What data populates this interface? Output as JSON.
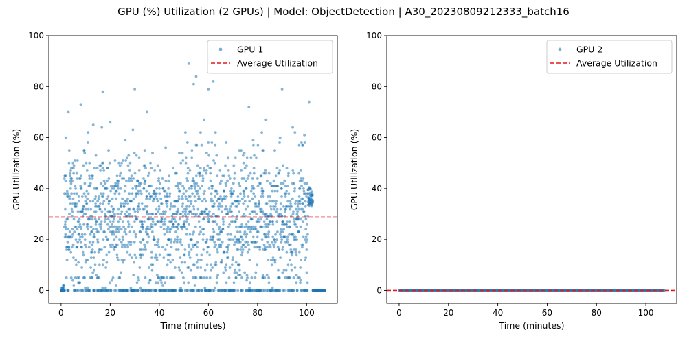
{
  "figure": {
    "suptitle": "GPU (%) Utilization (2 GPUs) | Model: ObjectDetection | A30_20230809212333_batch16"
  },
  "colors": {
    "points": "#1f77b4",
    "average": "#e31a1c"
  },
  "chart_data": [
    {
      "type": "scatter",
      "xlabel": "Time (minutes)",
      "ylabel": "GPU Utilization (%)",
      "xlim": [
        -5,
        112.5
      ],
      "ylim": [
        -5,
        100
      ],
      "xticks": [
        0,
        20,
        40,
        60,
        80,
        100
      ],
      "yticks": [
        0,
        20,
        40,
        60,
        80,
        100
      ],
      "legend": {
        "position": "top-right",
        "entries": [
          "GPU 1",
          "Average Utilization"
        ]
      },
      "series": [
        {
          "name": "GPU 1",
          "kind": "scatter",
          "x_range": [
            0,
            107.5
          ],
          "sample_interval_min": 0.05
        },
        {
          "name": "Average Utilization",
          "kind": "hline",
          "y": 28.8
        }
      ],
      "notable_points": [
        [
          52,
          89
        ],
        [
          55,
          84
        ],
        [
          54,
          81
        ],
        [
          62,
          82
        ],
        [
          60,
          79
        ],
        [
          30,
          79
        ],
        [
          90,
          79
        ],
        [
          17,
          78
        ],
        [
          101,
          74
        ],
        [
          8,
          73
        ],
        [
          3,
          70
        ],
        [
          35,
          70
        ]
      ]
    },
    {
      "type": "scatter",
      "xlabel": "Time (minutes)",
      "ylabel": "GPU Utilization (%)",
      "xlim": [
        -5,
        112.5
      ],
      "ylim": [
        -5,
        100
      ],
      "xticks": [
        0,
        20,
        40,
        60,
        80,
        100
      ],
      "yticks": [
        0,
        20,
        40,
        60,
        80,
        100
      ],
      "legend": {
        "position": "top-right",
        "entries": [
          "GPU 2",
          "Average Utilization"
        ]
      },
      "series": [
        {
          "name": "GPU 2",
          "kind": "scatter",
          "x_range": [
            0,
            107.5
          ],
          "constant_y": 0,
          "sample_interval_min": 0.25
        },
        {
          "name": "Average Utilization",
          "kind": "hline",
          "y": 0
        }
      ]
    }
  ]
}
